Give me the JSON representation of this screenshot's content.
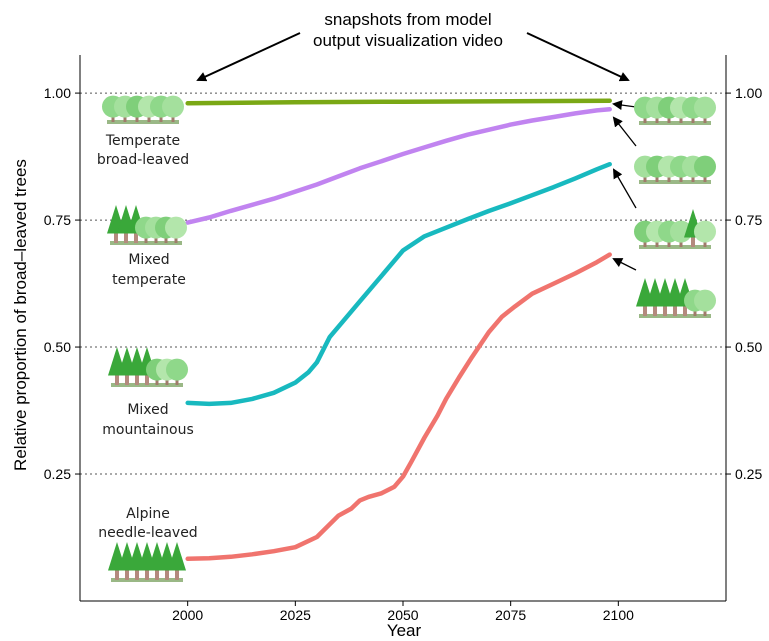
{
  "chart_data": {
    "type": "line",
    "annotation": [
      "snapshots from model",
      "output visualization video"
    ],
    "xlabel": "Year",
    "ylabel": "Relative proportion of broad–leaved trees",
    "xlim": [
      1975,
      2125
    ],
    "ylim": [
      0.0,
      1.075
    ],
    "x_ticks": [
      "2000",
      "2025",
      "2050",
      "2075",
      "2100"
    ],
    "y_ticks": [
      "0.25",
      "0.50",
      "0.75",
      "1.00"
    ],
    "grid": "dotted horizontal at 0.25, 0.50, 0.75, 1.00",
    "forest_labels": [
      [
        "Temperate",
        "broad-leaved"
      ],
      [
        "Mixed",
        "temperate"
      ],
      [
        "Mixed",
        "mountainous"
      ],
      [
        "Alpine",
        "needle-leaved"
      ]
    ],
    "series": [
      {
        "color": "#7aa815",
        "x": [
          2000,
          2025,
          2050,
          2075,
          2098
        ],
        "y": [
          0.98,
          0.982,
          0.983,
          0.984,
          0.985
        ]
      },
      {
        "color": "#c184f0",
        "x": [
          2000,
          2005,
          2010,
          2015,
          2020,
          2025,
          2030,
          2035,
          2040,
          2045,
          2050,
          2055,
          2060,
          2065,
          2070,
          2075,
          2080,
          2085,
          2090,
          2095,
          2098
        ],
        "y": [
          0.745,
          0.755,
          0.768,
          0.78,
          0.792,
          0.806,
          0.82,
          0.836,
          0.852,
          0.866,
          0.88,
          0.893,
          0.906,
          0.918,
          0.928,
          0.938,
          0.946,
          0.953,
          0.96,
          0.966,
          0.968
        ]
      },
      {
        "color": "#18b9bf",
        "x": [
          2000,
          2005,
          2010,
          2015,
          2020,
          2025,
          2028,
          2030,
          2033,
          2036,
          2040,
          2045,
          2050,
          2055,
          2060,
          2065,
          2070,
          2075,
          2080,
          2085,
          2090,
          2095,
          2098
        ],
        "y": [
          0.39,
          0.388,
          0.39,
          0.398,
          0.41,
          0.43,
          0.45,
          0.47,
          0.52,
          0.55,
          0.59,
          0.64,
          0.69,
          0.718,
          0.735,
          0.752,
          0.768,
          0.783,
          0.799,
          0.815,
          0.832,
          0.85,
          0.86
        ]
      },
      {
        "color": "#f0746e",
        "x": [
          2000,
          2005,
          2010,
          2015,
          2020,
          2025,
          2030,
          2035,
          2038,
          2040,
          2042,
          2045,
          2048,
          2050,
          2052,
          2055,
          2058,
          2060,
          2063,
          2066,
          2070,
          2073,
          2076,
          2080,
          2085,
          2090,
          2095,
          2098
        ],
        "y": [
          0.083,
          0.084,
          0.087,
          0.092,
          0.098,
          0.106,
          0.126,
          0.168,
          0.182,
          0.198,
          0.205,
          0.212,
          0.225,
          0.245,
          0.275,
          0.322,
          0.365,
          0.398,
          0.44,
          0.48,
          0.53,
          0.56,
          0.58,
          0.605,
          0.625,
          0.645,
          0.667,
          0.682
        ]
      }
    ]
  }
}
